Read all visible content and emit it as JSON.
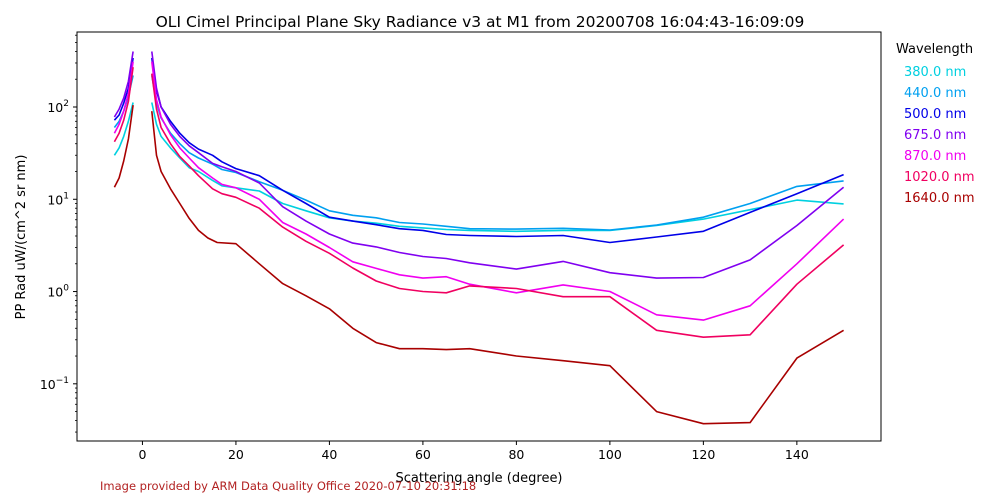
{
  "chart_data": {
    "type": "line",
    "title": "OLI Cimel Principal Plane Sky Radiance v3 at M1 from 20200708 16:04:43-16:09:09",
    "xlabel": "Scattering angle (degree)",
    "ylabel": "PP Rad uW/(cm^2 sr nm)",
    "xlim": [
      -14,
      158
    ],
    "ylim": [
      0.024,
      650
    ],
    "yscale": "log",
    "grid": false,
    "legend_position": "outside-right",
    "x_ticks": [
      {
        "value": 0,
        "label": "0"
      },
      {
        "value": 20,
        "label": "20"
      },
      {
        "value": 40,
        "label": "40"
      },
      {
        "value": 60,
        "label": "60"
      },
      {
        "value": 80,
        "label": "80"
      },
      {
        "value": 100,
        "label": "100"
      },
      {
        "value": 120,
        "label": "120"
      },
      {
        "value": 140,
        "label": "140"
      }
    ],
    "y_ticks": [
      {
        "value": 0.1,
        "base": "10",
        "exp": "−1"
      },
      {
        "value": 1,
        "base": "10",
        "exp": "0"
      },
      {
        "value": 10,
        "base": "10",
        "exp": "1"
      },
      {
        "value": 100,
        "base": "10",
        "exp": "2"
      }
    ],
    "legend_title": "Wavelength",
    "series": [
      {
        "name": "380.0 nm",
        "color": "#00d0e0",
        "segments": [
          {
            "x": [
              -6,
              -5,
              -4,
              -3,
              -2
            ],
            "y": [
              30,
              36,
              48,
              70,
              112
            ]
          },
          {
            "x": [
              2,
              3,
              4,
              6,
              8,
              10,
              12,
              15,
              17,
              20,
              25,
              30,
              35,
              40,
              45,
              50,
              55,
              60,
              65,
              70,
              80,
              90,
              100,
              110,
              120,
              130,
              140,
              150
            ],
            "y": [
              112,
              65,
              48,
              36,
              28,
              22,
              20,
              16,
              14,
              13.3,
              12.3,
              9,
              7.5,
              6.3,
              5.8,
              5.5,
              5.1,
              4.9,
              4.7,
              4.6,
              4.5,
              4.6,
              4.6,
              5.2,
              6.1,
              7.7,
              9.8,
              8.9
            ]
          }
        ]
      },
      {
        "name": "440.0 nm",
        "color": "#00a0f0",
        "segments": [
          {
            "x": [
              -6,
              -5,
              -4,
              -3,
              -2
            ],
            "y": [
              60,
              70,
              90,
              130,
              220
            ]
          },
          {
            "x": [
              2,
              3,
              4,
              6,
              8,
              10,
              12,
              15,
              17,
              20,
              25,
              30,
              35,
              40,
              45,
              50,
              55,
              60,
              65,
              70,
              80,
              90,
              100,
              110,
              120,
              130,
              140,
              150
            ],
            "y": [
              220,
              110,
              76,
              52,
              40,
              32,
              28,
              24,
              21,
              19.5,
              15.5,
              12.5,
              9.8,
              7.5,
              6.7,
              6.3,
              5.6,
              5.4,
              5.1,
              4.8,
              4.75,
              4.85,
              4.65,
              5.25,
              6.4,
              9,
              13.8,
              15.8
            ]
          }
        ]
      },
      {
        "name": "500.0 nm",
        "color": "#0000e8",
        "segments": [
          {
            "x": [
              -6,
              -5,
              -4,
              -3,
              -2
            ],
            "y": [
              72,
              82,
              110,
              160,
              340
            ]
          },
          {
            "x": [
              2,
              3,
              4,
              6,
              8,
              10,
              12,
              15,
              17,
              20,
              25,
              30,
              35,
              40,
              45,
              50,
              55,
              60,
              65,
              70,
              80,
              90,
              100,
              110,
              120,
              130,
              140,
              150
            ],
            "y": [
              340,
              150,
              100,
              70,
              52,
              41,
              35,
              30,
              25.5,
              21.5,
              18,
              12.5,
              9,
              6.4,
              5.8,
              5.3,
              4.8,
              4.6,
              4.15,
              4.05,
              3.95,
              4.05,
              3.4,
              3.9,
              4.5,
              7.2,
              11.5,
              18.5
            ]
          }
        ]
      },
      {
        "name": "675.0 nm",
        "color": "#8000f0",
        "segments": [
          {
            "x": [
              -6,
              -5,
              -4,
              -3,
              -2
            ],
            "y": [
              78,
              95,
              125,
              190,
              400
            ]
          },
          {
            "x": [
              2,
              3,
              4,
              6,
              8,
              10,
              12,
              15,
              17,
              20,
              25,
              30,
              35,
              40,
              45,
              50,
              55,
              60,
              65,
              70,
              80,
              90,
              100,
              110,
              120,
              130,
              140,
              150
            ],
            "y": [
              400,
              160,
              100,
              65,
              48,
              38,
              32,
              24.5,
              22.5,
              20,
              15,
              8.3,
              5.8,
              4.2,
              3.35,
              3.05,
              2.65,
              2.4,
              2.28,
              2.05,
              1.75,
              2.12,
              1.6,
              1.4,
              1.42,
              2.2,
              5.2,
              13.5
            ]
          }
        ]
      },
      {
        "name": "870.0 nm",
        "color": "#f000f0",
        "segments": [
          {
            "x": [
              -6,
              -5,
              -4,
              -3,
              -2
            ],
            "y": [
              52,
              65,
              90,
              140,
              310
            ]
          },
          {
            "x": [
              2,
              3,
              4,
              6,
              8,
              10,
              12,
              15,
              17,
              20,
              25,
              30,
              35,
              40,
              45,
              50,
              55,
              60,
              65,
              70,
              80,
              90,
              100,
              110,
              120,
              130,
              140,
              150
            ],
            "y": [
              310,
              120,
              78,
              50,
              36,
              28,
              22,
              17,
              14.5,
              13.3,
              10,
              5.6,
              4.2,
              3,
              2.1,
              1.78,
              1.52,
              1.4,
              1.45,
              1.2,
              0.97,
              1.18,
              1,
              0.56,
              0.49,
              0.7,
              2,
              6.1
            ]
          }
        ]
      },
      {
        "name": "1020.0 nm",
        "color": "#f00060",
        "segments": [
          {
            "x": [
              -6,
              -5,
              -4,
              -3,
              -2
            ],
            "y": [
              42,
              52,
              72,
              115,
              270
            ]
          },
          {
            "x": [
              2,
              3,
              4,
              6,
              8,
              10,
              12,
              15,
              17,
              20,
              25,
              30,
              35,
              40,
              45,
              50,
              55,
              60,
              65,
              70,
              80,
              90,
              100,
              110,
              120,
              130,
              140,
              150
            ],
            "y": [
              230,
              95,
              60,
              40,
              29,
              23,
              18,
              13,
              11.5,
              10.5,
              8,
              5,
              3.5,
              2.6,
              1.8,
              1.3,
              1.08,
              1,
              0.97,
              1.15,
              1.08,
              0.88,
              0.88,
              0.38,
              0.32,
              0.34,
              1.2,
              3.2
            ]
          }
        ]
      },
      {
        "name": "1640.0 nm",
        "color": "#a80000",
        "segments": [
          {
            "x": [
              -6,
              -5,
              -4,
              -3,
              -2
            ],
            "y": [
              13.5,
              17,
              26,
              45,
              105
            ]
          },
          {
            "x": [
              2,
              3,
              4,
              6,
              8,
              10,
              12,
              14,
              16,
              20,
              25,
              30,
              35,
              40,
              45,
              50,
              55,
              60,
              65,
              70,
              80,
              90,
              100,
              110,
              120,
              130,
              140,
              150
            ],
            "y": [
              90,
              30,
              20,
              13,
              9,
              6.2,
              4.6,
              3.8,
              3.4,
              3.3,
              2,
              1.22,
              0.9,
              0.65,
              0.4,
              0.28,
              0.24,
              0.24,
              0.235,
              0.24,
              0.2,
              0.178,
              0.157,
              0.05,
              0.037,
              0.038,
              0.19,
              0.38
            ]
          }
        ]
      }
    ]
  },
  "footer": {
    "text": "Image provided by ARM Data Quality Office 2020-07-10 20:31:18",
    "color": "#b22222"
  }
}
